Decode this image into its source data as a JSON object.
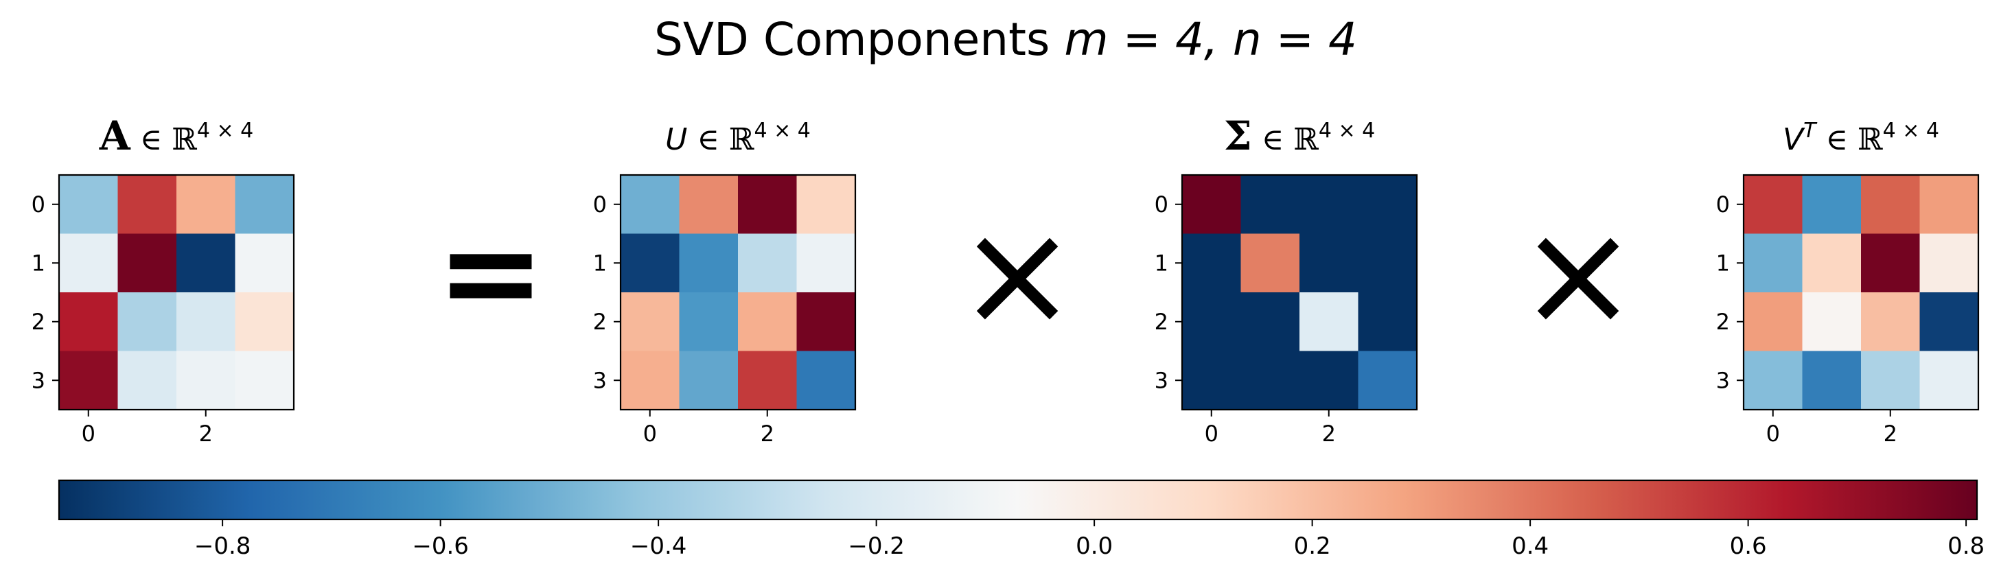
{
  "title": {
    "prefix": "SVD Components ",
    "math": "m = 4, n = 4"
  },
  "operators": {
    "equals": "=",
    "times1": "×",
    "times2": "×"
  },
  "colors": {
    "cmap": "RdBu_r",
    "operator": "#000000"
  },
  "chart_data": [
    {
      "type": "heatmap",
      "name": "A",
      "title_symbol": "A",
      "title_suffix": "∈ ℝ",
      "title_sup": "4 × 4",
      "xticks": [
        "0",
        "2"
      ],
      "yticks": [
        "0",
        "1",
        "2",
        "3"
      ],
      "values": [
        [
          -0.42,
          0.55,
          0.25,
          -0.5
        ],
        [
          -0.15,
          0.78,
          -0.92,
          -0.1
        ],
        [
          0.63,
          -0.35,
          -0.22,
          0.05
        ],
        [
          0.72,
          -0.2,
          -0.12,
          -0.1
        ]
      ]
    },
    {
      "type": "heatmap",
      "name": "U",
      "title_symbol": "U",
      "title_suffix": "∈ ℝ",
      "title_sup": "4 × 4",
      "xticks": [
        "0",
        "2"
      ],
      "yticks": [
        "0",
        "1",
        "2",
        "3"
      ],
      "values": [
        [
          -0.5,
          0.35,
          0.78,
          0.12
        ],
        [
          -0.9,
          -0.62,
          -0.3,
          -0.12
        ],
        [
          0.22,
          -0.58,
          0.25,
          0.78
        ],
        [
          0.25,
          -0.53,
          0.55,
          -0.7
        ]
      ]
    },
    {
      "type": "heatmap",
      "name": "Sigma",
      "title_symbol": "Σ",
      "title_suffix": "∈ ℝ",
      "title_sup": "4 × 4",
      "xticks": [
        "0",
        "2"
      ],
      "yticks": [
        "0",
        "1",
        "2",
        "3"
      ],
      "values": [
        [
          0.8,
          -0.95,
          -0.95,
          -0.95
        ],
        [
          -0.95,
          0.38,
          -0.95,
          -0.95
        ],
        [
          -0.95,
          -0.95,
          -0.18,
          -0.95
        ],
        [
          -0.95,
          -0.95,
          -0.95,
          -0.72
        ]
      ]
    },
    {
      "type": "heatmap",
      "name": "VT",
      "title_symbol": "V",
      "title_symbol_sup": "T",
      "title_suffix": "∈ ℝ",
      "title_sup": "4 × 4",
      "xticks": [
        "0",
        "2"
      ],
      "yticks": [
        "0",
        "1",
        "2",
        "3"
      ],
      "values": [
        [
          0.55,
          -0.6,
          0.45,
          0.3
        ],
        [
          -0.5,
          0.12,
          0.78,
          0.0
        ],
        [
          0.3,
          -0.05,
          0.2,
          -0.9
        ],
        [
          -0.45,
          -0.68,
          -0.35,
          -0.15
        ]
      ]
    },
    {
      "type": "colorbar",
      "name": "colorbar",
      "vmin": -0.95,
      "vmax": 0.81,
      "ticks": [
        -0.8,
        -0.6,
        -0.4,
        -0.2,
        0.0,
        0.2,
        0.4,
        0.6,
        0.8
      ],
      "tick_labels": [
        "−0.8",
        "−0.6",
        "−0.4",
        "−0.2",
        "0.0",
        "0.2",
        "0.4",
        "0.6",
        "0.8"
      ]
    }
  ]
}
